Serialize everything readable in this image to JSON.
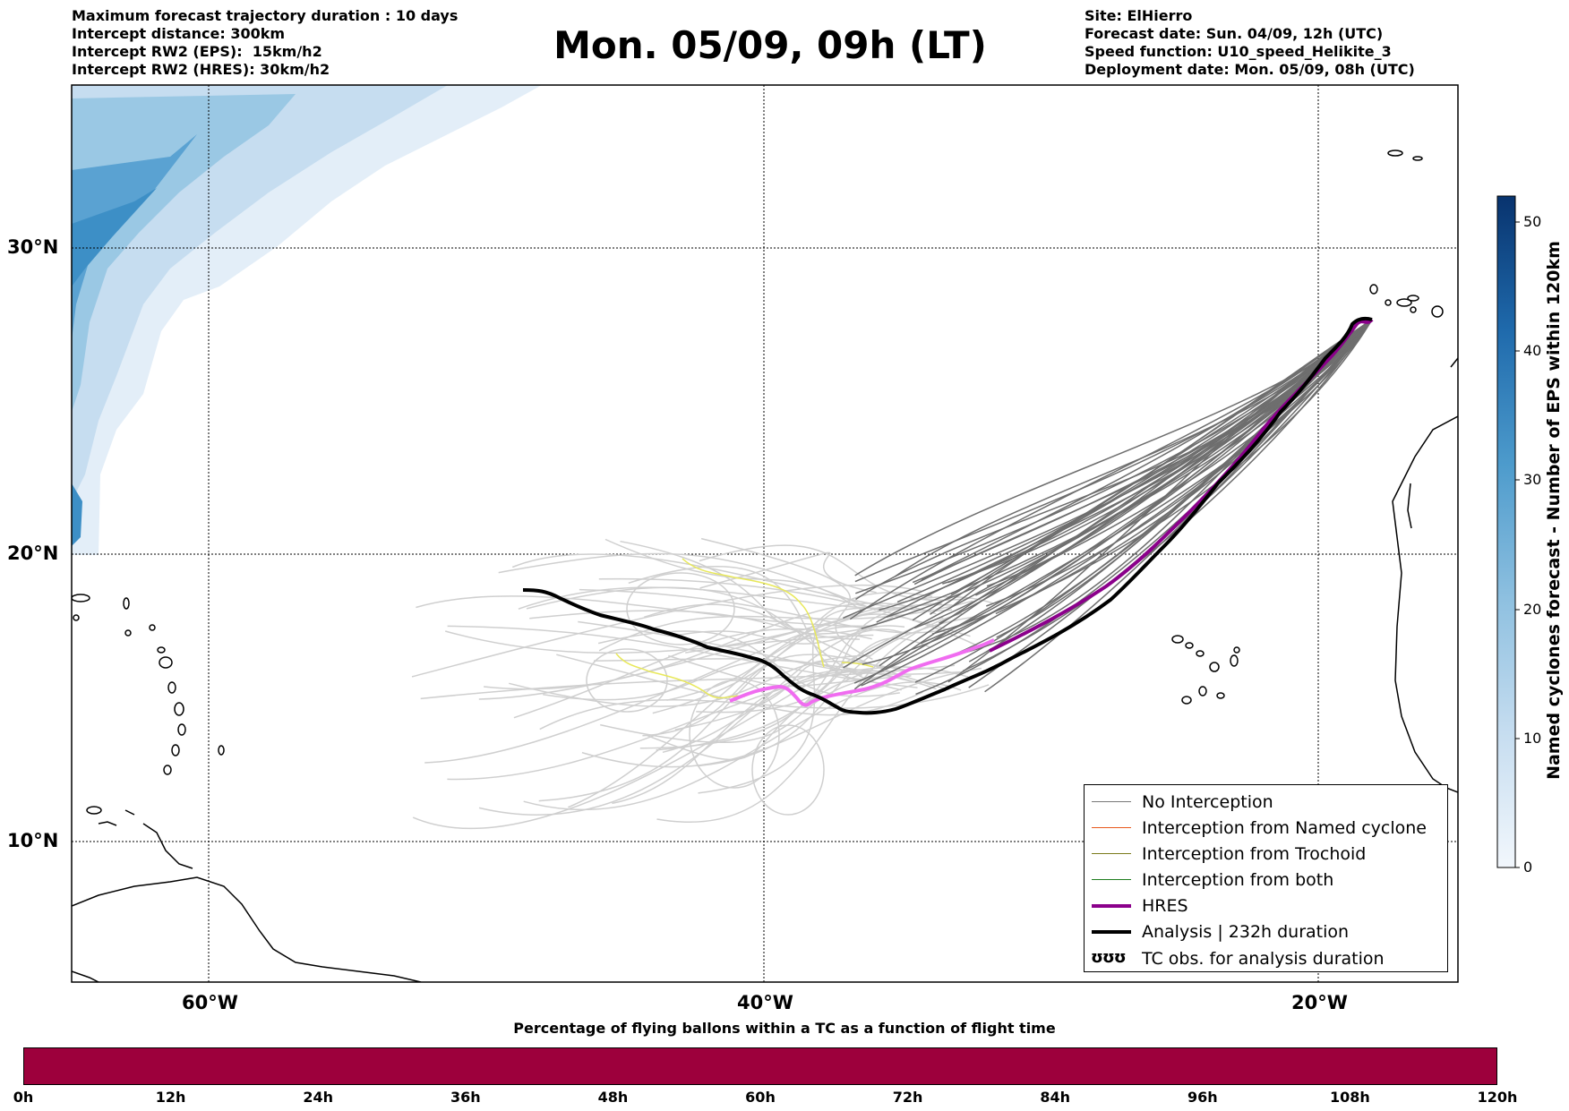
{
  "header_left": [
    "Maximum forecast trajectory duration : 10 days",
    "Intercept distance: 300km",
    "Intercept RW2 (EPS):  15km/h2",
    "Intercept RW2 (HRES): 30km/h2"
  ],
  "header_right": [
    "Site: ElHierro",
    "Forecast date: Sun. 04/09, 12h (UTC)",
    "Speed function: U10_speed_Helikite_3",
    "Deployment date: Mon. 05/09, 08h (UTC)"
  ],
  "title": "Mon. 05/09, 09h (LT)",
  "map": {
    "lat_labels": [
      "30°N",
      "20°N",
      "10°N"
    ],
    "lon_labels": [
      "60°W",
      "40°W",
      "20°W"
    ],
    "colors": {
      "eps_tracks": "#6e6e6e",
      "eps_tracks_light": "#cfcfcf",
      "hres": "#8b008b",
      "hres_light": "#f06cf0",
      "analysis": "#000000",
      "trochoid_flag": "#e8e85a",
      "coast": "#000000",
      "cyclone_shading": "#3d8fc6"
    }
  },
  "legend": [
    {
      "label": "No Interception",
      "color": "#777777",
      "width": 1.5
    },
    {
      "label": "Interception from Named cyclone",
      "color": "#e8581c",
      "width": 1.5
    },
    {
      "label": "Interception from Trochoid",
      "color": "#7a7a1a",
      "width": 1.5
    },
    {
      "label": "Interception from both",
      "color": "#1e7d1e",
      "width": 1.5
    },
    {
      "label": "HRES",
      "color": "#8b008b",
      "width": 4
    },
    {
      "label": "Analysis | 232h duration",
      "color": "#000000",
      "width": 4
    },
    {
      "label": "TC obs. for analysis duration",
      "symbol": "ʊʊʊ"
    }
  ],
  "colorbar": {
    "label": "Named cyclones forecast - Number of EPS within 120km",
    "ticks": [
      "50",
      "40",
      "30",
      "20",
      "10",
      "0"
    ],
    "min": 0,
    "max": 52
  },
  "bottom": {
    "title": "Percentage of flying ballons within a TC as a function of flight time",
    "ticks": [
      "0h",
      "12h",
      "24h",
      "36h",
      "48h",
      "60h",
      "72h",
      "84h",
      "96h",
      "108h",
      "120h"
    ],
    "bar_color": "#9d003c"
  }
}
